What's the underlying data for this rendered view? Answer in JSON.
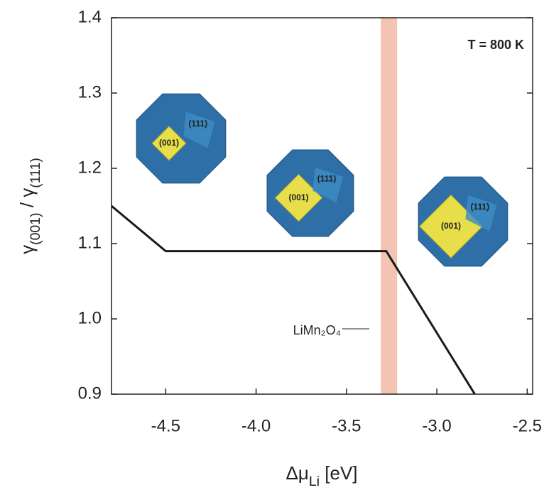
{
  "chart_data": {
    "type": "line",
    "title": "T = 800 K",
    "xlabel_parts": [
      {
        "text": "Δμ",
        "sub": false
      },
      {
        "text": "Li",
        "sub": true
      },
      {
        "text": " [eV]",
        "sub": false
      }
    ],
    "ylabel_parts": [
      {
        "text": "γ",
        "sub": false
      },
      {
        "text": "(001)",
        "sub": true
      },
      {
        "text": " / ",
        "sub": false
      },
      {
        "text": "γ",
        "sub": false
      },
      {
        "text": "(111)",
        "sub": true
      }
    ],
    "x": [
      -4.8,
      -4.5,
      -3.28,
      -2.79
    ],
    "series": [
      {
        "color": "#1a1a1a",
        "values": [
          1.15,
          1.09,
          1.09,
          0.9
        ]
      }
    ],
    "xlim": [
      -4.8,
      -2.47
    ],
    "ylim": [
      0.9,
      1.4
    ],
    "xticks": [
      -4.5,
      {
        "value": -4,
        "label": "-4.0"
      },
      -3.5,
      {
        "value": -3,
        "label": "-3.0"
      },
      -2.5
    ],
    "yticks": [
      0.9,
      {
        "value": 1,
        "label": "1.0"
      },
      1.1,
      1.2,
      1.3,
      1.4
    ],
    "band": {
      "x": [
        -3.31,
        -3.22
      ],
      "color": "#f4c3b2",
      "label": "LiMn₂O₄"
    },
    "insets": [
      {
        "labels": [
          "(111)",
          "(001)"
        ]
      },
      {
        "labels": [
          "(111)",
          "(001)"
        ]
      },
      {
        "labels": [
          "(111)",
          "(001)"
        ]
      }
    ]
  }
}
